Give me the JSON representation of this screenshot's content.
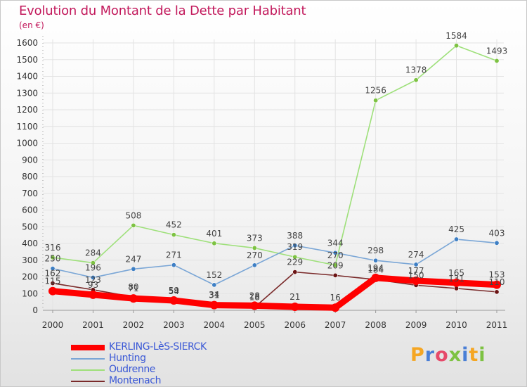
{
  "header": {
    "title": "Evolution du Montant de la Dette par Habitant",
    "unit": "(en €)"
  },
  "brand": {
    "letters": [
      "P",
      "r",
      "o",
      "x",
      "i",
      "t",
      "i"
    ],
    "letter_colors": [
      "#f5a623",
      "#4a7fd6",
      "#e64a6a",
      "#7dc242",
      "#4a7fd6",
      "#f5a623",
      "#7dc242"
    ]
  },
  "chart_data": {
    "type": "line",
    "x": [
      "2000",
      "2001",
      "2002",
      "2003",
      "2004",
      "2005",
      "2006",
      "2007",
      "2008",
      "2009",
      "2010",
      "2011"
    ],
    "ylim": [
      0,
      1600
    ],
    "yticks": [
      0,
      100,
      200,
      300,
      400,
      500,
      600,
      700,
      800,
      900,
      1000,
      1100,
      1200,
      1300,
      1400,
      1500,
      1600
    ],
    "grid": true,
    "legend_position": "bottom-left",
    "series": [
      {
        "name": "Montenach",
        "color": "#7a2a2a",
        "marker_color": "#6b1414",
        "values": [
          162,
          123,
          80,
          54,
          34,
          18,
          229,
          209,
          184,
          150,
          131,
          110
        ]
      },
      {
        "name": "Oudrenne",
        "color": "#9ee07a",
        "marker_color": "#7dc242",
        "values": [
          316,
          284,
          508,
          452,
          401,
          373,
          319,
          270,
          1256,
          1378,
          1584,
          1493
        ]
      },
      {
        "name": "Hunting",
        "color": "#7aa6d6",
        "marker_color": "#3e7fc4",
        "values": [
          250,
          196,
          247,
          271,
          152,
          270,
          388,
          344,
          298,
          274,
          425,
          403
        ]
      },
      {
        "name": "KERLING-LèS-SIERCK",
        "color": "#ff0000",
        "marker_color": "#ff0000",
        "values": [
          115,
          93,
          71,
          59,
          31,
          28,
          21,
          16,
          194,
          177,
          165,
          153
        ],
        "thick": true
      }
    ],
    "legend_order": [
      "KERLING-LèS-SIERCK",
      "Hunting",
      "Oudrenne",
      "Montenach"
    ]
  }
}
